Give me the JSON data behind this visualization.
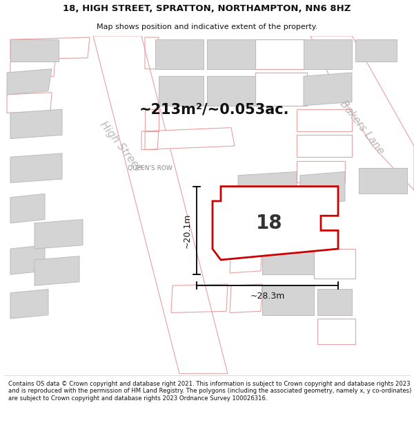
{
  "title": "18, HIGH STREET, SPRATTON, NORTHAMPTON, NN6 8HZ",
  "subtitle": "Map shows position and indicative extent of the property.",
  "area_label": "~213m²/~0.053ac.",
  "property_number": "18",
  "dim_width": "~28.3m",
  "dim_height": "~20.1m",
  "queens_row_label": "QUEEN'S ROW",
  "high_street_label": "High Street",
  "bakers_lane_label": "Bakers Lane",
  "footer_text": "Contains OS data © Crown copyright and database right 2021. This information is subject to Crown copyright and database rights 2023 and is reproduced with the permission of HM Land Registry. The polygons (including the associated geometry, namely x, y co-ordinates) are subject to Crown copyright and database rights 2023 Ordnance Survey 100026316.",
  "map_bg": "#f2f2f2",
  "property_fill": "#ffffff",
  "property_edge": "#cc0000",
  "road_fill": "#ffffff",
  "road_outline": "#e8a0a0",
  "building_fill": "#d4d4d4",
  "building_outline": "#bbbbbb",
  "pink_outline": "#e8a0a0",
  "street_label_color": "#b0b0b0",
  "dim_color": "#111111",
  "title_color": "#111111",
  "footer_color": "#111111"
}
